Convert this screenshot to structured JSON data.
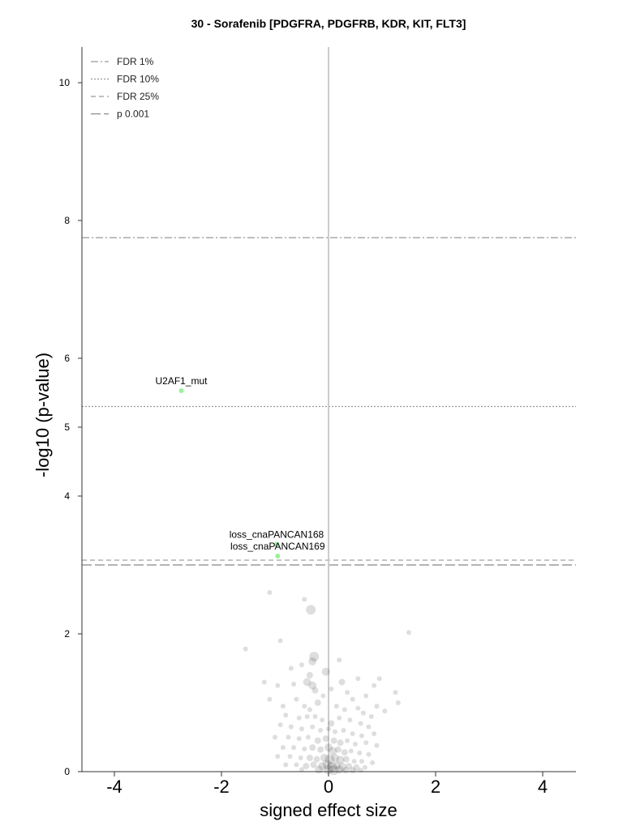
{
  "chart_data": {
    "type": "scatter",
    "title": "30 - Sorafenib [PDGFRA, PDGFRB, KDR, KIT, FLT3]",
    "xlabel": "signed effect size",
    "ylabel": "-log10 (p-value)",
    "xlim": [
      -4.6,
      4.6
    ],
    "ylim": [
      0,
      10.5
    ],
    "xticks": [
      "-4",
      "-2",
      "0",
      "2",
      "4"
    ],
    "yticks": [
      "0",
      "2",
      "4",
      "5",
      "6",
      "8",
      "10"
    ],
    "xtick_values": [
      -4,
      -2,
      0,
      2,
      4
    ],
    "ytick_values": [
      0,
      2,
      4,
      5,
      6,
      8,
      10
    ],
    "grid": false,
    "legend_placement": "top-left",
    "thresholds": [
      {
        "label": "FDR 1%",
        "y": 7.75,
        "style": "dashdot",
        "color": "#999999"
      },
      {
        "label": "FDR 10%",
        "y": 5.3,
        "style": "dotted",
        "color": "#999999"
      },
      {
        "label": "FDR 25%",
        "y": 3.07,
        "style": "dashed",
        "color": "#999999"
      },
      {
        "label": "p 0.001",
        "y": 3.0,
        "style": "longdash",
        "color": "#888888"
      }
    ],
    "highlighted": [
      {
        "label": "U2AF1_mut",
        "x": -2.75,
        "y": 5.53,
        "color": "#90ee90"
      },
      {
        "label": "loss_cnaPANCAN168",
        "x": -0.97,
        "y": 3.3,
        "color": "#90ee90"
      },
      {
        "label": "loss_cnaPANCAN169",
        "x": -0.95,
        "y": 3.13,
        "color": "#90ee90"
      }
    ],
    "points": [
      {
        "x": -1.1,
        "y": 2.6,
        "size": 3
      },
      {
        "x": -0.45,
        "y": 2.5,
        "size": 3
      },
      {
        "x": -0.33,
        "y": 2.35,
        "size": 6
      },
      {
        "x": 1.5,
        "y": 2.02,
        "size": 3
      },
      {
        "x": -1.55,
        "y": 1.78,
        "size": 3
      },
      {
        "x": -0.9,
        "y": 1.9,
        "size": 3
      },
      {
        "x": -0.27,
        "y": 1.67,
        "size": 6
      },
      {
        "x": -0.3,
        "y": 1.6,
        "size": 5
      },
      {
        "x": -0.5,
        "y": 1.55,
        "size": 3
      },
      {
        "x": -0.7,
        "y": 1.5,
        "size": 3
      },
      {
        "x": -0.35,
        "y": 1.4,
        "size": 4
      },
      {
        "x": 0.2,
        "y": 1.62,
        "size": 3
      },
      {
        "x": -0.05,
        "y": 1.45,
        "size": 5
      },
      {
        "x": 0.25,
        "y": 1.3,
        "size": 4
      },
      {
        "x": 0.05,
        "y": 1.2,
        "size": 3
      },
      {
        "x": 0.55,
        "y": 1.35,
        "size": 3
      },
      {
        "x": 0.95,
        "y": 1.35,
        "size": 3
      },
      {
        "x": 0.85,
        "y": 1.25,
        "size": 3
      },
      {
        "x": -1.2,
        "y": 1.3,
        "size": 3
      },
      {
        "x": -0.95,
        "y": 1.25,
        "size": 3
      },
      {
        "x": -0.65,
        "y": 1.27,
        "size": 3
      },
      {
        "x": -0.4,
        "y": 1.3,
        "size": 5
      },
      {
        "x": -0.3,
        "y": 1.25,
        "size": 5
      },
      {
        "x": -0.25,
        "y": 1.18,
        "size": 4
      },
      {
        "x": -0.1,
        "y": 1.1,
        "size": 3
      },
      {
        "x": 0.35,
        "y": 1.15,
        "size": 3
      },
      {
        "x": 0.45,
        "y": 1.05,
        "size": 3
      },
      {
        "x": 0.7,
        "y": 1.1,
        "size": 3
      },
      {
        "x": 1.25,
        "y": 1.15,
        "size": 3
      },
      {
        "x": 1.3,
        "y": 1.0,
        "size": 3
      },
      {
        "x": 0.9,
        "y": 0.95,
        "size": 3
      },
      {
        "x": -1.1,
        "y": 1.05,
        "size": 3
      },
      {
        "x": -0.85,
        "y": 0.95,
        "size": 3
      },
      {
        "x": -0.6,
        "y": 1.05,
        "size": 3
      },
      {
        "x": -0.45,
        "y": 0.95,
        "size": 3
      },
      {
        "x": -0.35,
        "y": 0.9,
        "size": 3
      },
      {
        "x": -0.2,
        "y": 1.0,
        "size": 4
      },
      {
        "x": 0.15,
        "y": 0.95,
        "size": 3
      },
      {
        "x": 0.3,
        "y": 0.9,
        "size": 3
      },
      {
        "x": 0.55,
        "y": 0.92,
        "size": 3
      },
      {
        "x": 0.65,
        "y": 0.85,
        "size": 3
      },
      {
        "x": 0.8,
        "y": 0.8,
        "size": 3
      },
      {
        "x": 1.05,
        "y": 0.88,
        "size": 3
      },
      {
        "x": -0.8,
        "y": 0.82,
        "size": 3
      },
      {
        "x": -0.55,
        "y": 0.78,
        "size": 3
      },
      {
        "x": -0.4,
        "y": 0.8,
        "size": 3
      },
      {
        "x": -0.25,
        "y": 0.8,
        "size": 3
      },
      {
        "x": -0.12,
        "y": 0.75,
        "size": 3
      },
      {
        "x": 0.05,
        "y": 0.7,
        "size": 4
      },
      {
        "x": 0.2,
        "y": 0.78,
        "size": 3
      },
      {
        "x": 0.4,
        "y": 0.75,
        "size": 3
      },
      {
        "x": 0.6,
        "y": 0.7,
        "size": 3
      },
      {
        "x": 0.75,
        "y": 0.65,
        "size": 3
      },
      {
        "x": -0.9,
        "y": 0.68,
        "size": 3
      },
      {
        "x": -0.7,
        "y": 0.65,
        "size": 3
      },
      {
        "x": -0.5,
        "y": 0.62,
        "size": 3
      },
      {
        "x": -0.3,
        "y": 0.65,
        "size": 3
      },
      {
        "x": -0.15,
        "y": 0.6,
        "size": 3
      },
      {
        "x": 0.0,
        "y": 0.62,
        "size": 3
      },
      {
        "x": 0.12,
        "y": 0.58,
        "size": 3
      },
      {
        "x": 0.28,
        "y": 0.6,
        "size": 3
      },
      {
        "x": 0.45,
        "y": 0.55,
        "size": 3
      },
      {
        "x": 0.62,
        "y": 0.52,
        "size": 3
      },
      {
        "x": 0.85,
        "y": 0.55,
        "size": 3
      },
      {
        "x": -1.0,
        "y": 0.5,
        "size": 3
      },
      {
        "x": -0.75,
        "y": 0.5,
        "size": 3
      },
      {
        "x": -0.55,
        "y": 0.48,
        "size": 3
      },
      {
        "x": -0.38,
        "y": 0.5,
        "size": 3
      },
      {
        "x": -0.2,
        "y": 0.45,
        "size": 4
      },
      {
        "x": -0.05,
        "y": 0.48,
        "size": 4
      },
      {
        "x": 0.1,
        "y": 0.45,
        "size": 4
      },
      {
        "x": 0.22,
        "y": 0.42,
        "size": 4
      },
      {
        "x": 0.35,
        "y": 0.45,
        "size": 3
      },
      {
        "x": 0.5,
        "y": 0.4,
        "size": 3
      },
      {
        "x": 0.7,
        "y": 0.42,
        "size": 3
      },
      {
        "x": 0.9,
        "y": 0.38,
        "size": 3
      },
      {
        "x": -0.85,
        "y": 0.35,
        "size": 3
      },
      {
        "x": -0.65,
        "y": 0.35,
        "size": 3
      },
      {
        "x": -0.45,
        "y": 0.33,
        "size": 3
      },
      {
        "x": -0.3,
        "y": 0.35,
        "size": 4
      },
      {
        "x": -0.15,
        "y": 0.32,
        "size": 4
      },
      {
        "x": 0.0,
        "y": 0.35,
        "size": 5
      },
      {
        "x": 0.08,
        "y": 0.3,
        "size": 5
      },
      {
        "x": 0.18,
        "y": 0.32,
        "size": 4
      },
      {
        "x": 0.3,
        "y": 0.28,
        "size": 4
      },
      {
        "x": 0.42,
        "y": 0.3,
        "size": 3
      },
      {
        "x": 0.58,
        "y": 0.27,
        "size": 3
      },
      {
        "x": 0.75,
        "y": 0.25,
        "size": 3
      },
      {
        "x": -0.95,
        "y": 0.22,
        "size": 3
      },
      {
        "x": -0.72,
        "y": 0.22,
        "size": 3
      },
      {
        "x": -0.52,
        "y": 0.2,
        "size": 3
      },
      {
        "x": -0.35,
        "y": 0.2,
        "size": 4
      },
      {
        "x": -0.22,
        "y": 0.18,
        "size": 4
      },
      {
        "x": -0.08,
        "y": 0.2,
        "size": 5
      },
      {
        "x": 0.02,
        "y": 0.18,
        "size": 6
      },
      {
        "x": 0.12,
        "y": 0.2,
        "size": 5
      },
      {
        "x": 0.22,
        "y": 0.17,
        "size": 5
      },
      {
        "x": 0.33,
        "y": 0.18,
        "size": 4
      },
      {
        "x": 0.48,
        "y": 0.15,
        "size": 3
      },
      {
        "x": 0.62,
        "y": 0.15,
        "size": 3
      },
      {
        "x": 0.82,
        "y": 0.13,
        "size": 3
      },
      {
        "x": -0.8,
        "y": 0.1,
        "size": 3
      },
      {
        "x": -0.6,
        "y": 0.1,
        "size": 3
      },
      {
        "x": -0.42,
        "y": 0.08,
        "size": 4
      },
      {
        "x": -0.28,
        "y": 0.1,
        "size": 4
      },
      {
        "x": -0.12,
        "y": 0.08,
        "size": 5
      },
      {
        "x": -0.02,
        "y": 0.1,
        "size": 6
      },
      {
        "x": 0.06,
        "y": 0.07,
        "size": 6
      },
      {
        "x": 0.15,
        "y": 0.09,
        "size": 5
      },
      {
        "x": 0.26,
        "y": 0.07,
        "size": 5
      },
      {
        "x": 0.38,
        "y": 0.08,
        "size": 4
      },
      {
        "x": 0.52,
        "y": 0.06,
        "size": 4
      },
      {
        "x": 0.68,
        "y": 0.06,
        "size": 3
      },
      {
        "x": -0.5,
        "y": 0.03,
        "size": 3
      },
      {
        "x": -0.18,
        "y": 0.03,
        "size": 5
      },
      {
        "x": 0.0,
        "y": 0.03,
        "size": 6
      },
      {
        "x": 0.1,
        "y": 0.02,
        "size": 6
      },
      {
        "x": 0.2,
        "y": 0.03,
        "size": 5
      },
      {
        "x": 0.32,
        "y": 0.02,
        "size": 4
      },
      {
        "x": 0.45,
        "y": 0.02,
        "size": 4
      },
      {
        "x": 0.6,
        "y": 0.02,
        "size": 3
      }
    ]
  }
}
